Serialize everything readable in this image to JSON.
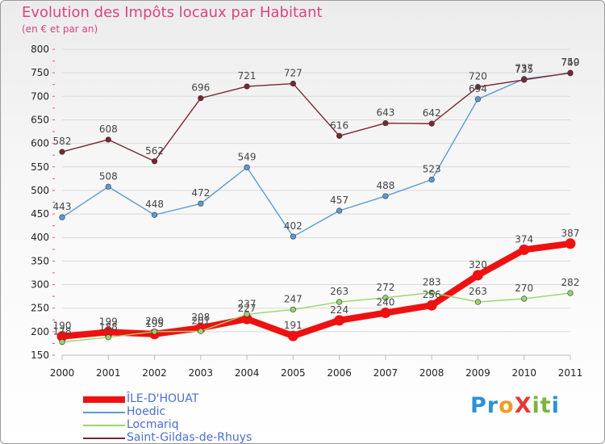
{
  "chart_data": {
    "type": "line",
    "title": "Evolution des Impôts locaux par Habitant",
    "subtitle": "(en € et par an)",
    "categories": [
      "2000",
      "2001",
      "2002",
      "2003",
      "2004",
      "2005",
      "2006",
      "2007",
      "2008",
      "2009",
      "2010",
      "2011"
    ],
    "ylim": [
      150,
      800
    ],
    "yticks": [
      150,
      200,
      250,
      300,
      350,
      400,
      450,
      500,
      550,
      600,
      650,
      700,
      750,
      800
    ],
    "series": [
      {
        "name": "ÎLE-D'HOUAT",
        "color": "#ee1111",
        "values": [
          190,
          199,
          195,
          208,
          227,
          191,
          224,
          240,
          256,
          320,
          374,
          387
        ]
      },
      {
        "name": "Hoedic",
        "color": "#5b9bd5",
        "values": [
          443,
          508,
          448,
          472,
          549,
          402,
          457,
          488,
          523,
          694,
          737,
          749
        ]
      },
      {
        "name": "Locmariq",
        "color": "#9ad56b",
        "values": [
          178,
          188,
          200,
          201,
          237,
          247,
          263,
          272,
          283,
          263,
          270,
          282
        ]
      },
      {
        "name": "Saint-Gildas-de-Rhuys",
        "color": "#7a2630",
        "values": [
          582,
          608,
          562,
          696,
          721,
          727,
          616,
          643,
          642,
          720,
          735,
          750
        ]
      }
    ]
  },
  "legend": {
    "items": [
      "ÎLE-D'HOUAT",
      "Hoedic",
      "Locmariq",
      "Saint-Gildas-de-Rhuys"
    ]
  },
  "logo": {
    "text": "ProXiti"
  }
}
